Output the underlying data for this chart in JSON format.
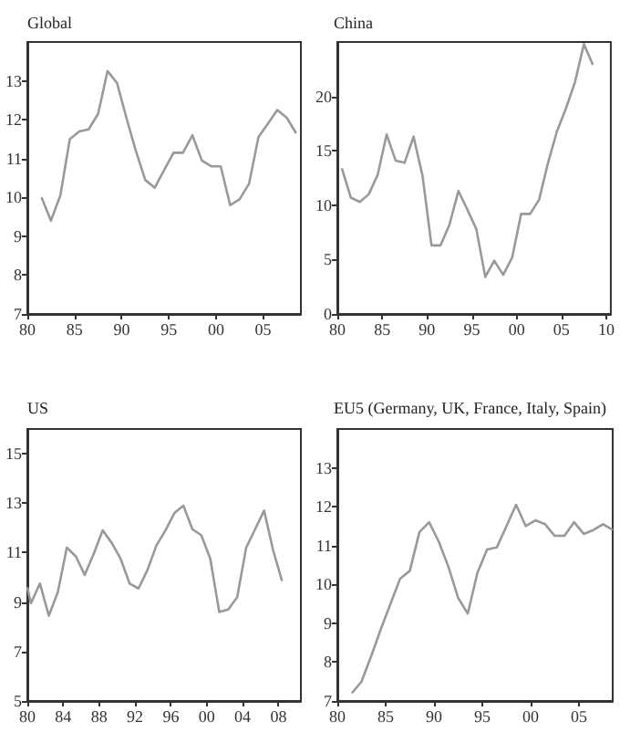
{
  "chart_data": [
    {
      "type": "line",
      "title": "Global",
      "x": [
        1981.5,
        1982.5,
        1983.5,
        1984.5,
        1985.5,
        1986.5,
        1987.5,
        1988.5,
        1989.5,
        1990.5,
        1991.5,
        1992.5,
        1993.5,
        1994.5,
        1995.5,
        1996.5,
        1997.5,
        1998.5,
        1999.5,
        2000.5,
        2001.5,
        2002.5,
        2003.5,
        2004.5,
        2005.5,
        2006.5,
        2007.5,
        2008.5
      ],
      "series": [
        {
          "color": "#999999",
          "values": [
            10.0,
            9.4,
            10.05,
            11.5,
            11.7,
            11.75,
            12.15,
            13.25,
            12.95,
            12.05,
            11.2,
            10.45,
            10.25,
            10.7,
            11.15,
            11.15,
            11.6,
            10.95,
            10.8,
            10.8,
            9.8,
            9.95,
            10.35,
            11.55,
            11.9,
            12.25,
            12.05,
            11.65
          ]
        }
      ],
      "xlim": [
        1980,
        2009
      ],
      "xticks": [
        {
          "value": 1980,
          "label": "80"
        },
        {
          "value": 1985,
          "label": "85"
        },
        {
          "value": 1990,
          "label": "90"
        },
        {
          "value": 1995,
          "label": "95"
        },
        {
          "value": 2000,
          "label": "00"
        },
        {
          "value": 2005,
          "label": "05"
        }
      ],
      "ylim": [
        7,
        14
      ],
      "yticks": [
        7,
        8,
        9,
        10,
        11,
        12,
        13
      ],
      "marker": "none",
      "line_style": "solid"
    },
    {
      "type": "line",
      "title": "China",
      "x": [
        1980.5,
        1981.5,
        1982.5,
        1983.5,
        1984.5,
        1985.5,
        1986.5,
        1987.5,
        1988.5,
        1989.5,
        1990.5,
        1991.5,
        1992.5,
        1993.5,
        1994.5,
        1995.5,
        1996.5,
        1997.5,
        1998.5,
        1999.5,
        2000.5,
        2001.5,
        2002.5,
        2003.5,
        2004.5,
        2005.5,
        2006.5,
        2007.5,
        2008.5
      ],
      "series": [
        {
          "color": "#999999",
          "values": [
            13.4,
            10.7,
            10.3,
            11.0,
            12.8,
            16.5,
            14.1,
            13.9,
            16.3,
            12.7,
            6.3,
            6.3,
            8.2,
            11.3,
            9.6,
            7.8,
            3.4,
            4.9,
            3.6,
            5.2,
            9.2,
            9.2,
            10.5,
            13.9,
            16.8,
            18.9,
            21.3,
            24.8,
            22.9
          ]
        }
      ],
      "xlim": [
        1980,
        2010.5
      ],
      "xticks": [
        {
          "value": 1980,
          "label": "80"
        },
        {
          "value": 1985,
          "label": "85"
        },
        {
          "value": 1990,
          "label": "90"
        },
        {
          "value": 1995,
          "label": "95"
        },
        {
          "value": 2000,
          "label": "00"
        },
        {
          "value": 2005,
          "label": "05"
        },
        {
          "value": 2010,
          "label": "10"
        }
      ],
      "ylim": [
        0,
        25
      ],
      "yticks": [
        0,
        5,
        10,
        15,
        20
      ],
      "marker": "none",
      "line_style": "solid"
    },
    {
      "type": "line",
      "title": "US",
      "x": [
        1980,
        1980.4,
        1981.4,
        1982.4,
        1983.4,
        1984.4,
        1985.4,
        1986.4,
        1987.4,
        1988.4,
        1989.4,
        1990.4,
        1991.4,
        1992.4,
        1993.4,
        1994.4,
        1995.4,
        1996.4,
        1997.4,
        1998.4,
        1999.4,
        2000.4,
        2001.4,
        2002.4,
        2003.4,
        2004.4,
        2005.4,
        2006.4,
        2007.4,
        2008.4
      ],
      "series": [
        {
          "color": "#999999",
          "values": [
            9.6,
            8.95,
            9.75,
            8.45,
            9.4,
            11.2,
            10.85,
            10.1,
            10.95,
            11.9,
            11.4,
            10.75,
            9.75,
            9.55,
            10.3,
            11.3,
            11.9,
            12.6,
            12.9,
            11.95,
            11.7,
            10.75,
            8.6,
            8.7,
            9.2,
            11.2,
            11.95,
            12.7,
            11.1,
            9.85
          ]
        }
      ],
      "xlim": [
        1980,
        2010.5
      ],
      "xticks": [
        {
          "value": 1980,
          "label": "80"
        },
        {
          "value": 1984,
          "label": "84"
        },
        {
          "value": 1988,
          "label": "88"
        },
        {
          "value": 1992,
          "label": "92"
        },
        {
          "value": 1996,
          "label": "96"
        },
        {
          "value": 2000,
          "label": "00"
        },
        {
          "value": 2004,
          "label": "04"
        },
        {
          "value": 2008,
          "label": "08"
        }
      ],
      "ylim": [
        5,
        16
      ],
      "yticks": [
        5,
        7,
        9,
        11,
        13,
        15
      ],
      "marker": "none",
      "line_style": "solid"
    },
    {
      "type": "line",
      "title": "EU5 (Germany, UK, France, Italy, Spain)",
      "x": [
        1981.5,
        1982.5,
        1983.5,
        1984.5,
        1985.5,
        1986.5,
        1987.5,
        1988.5,
        1989.5,
        1990.5,
        1991.5,
        1992.5,
        1993.5,
        1994.5,
        1995.5,
        1996.5,
        1997.5,
        1998.5,
        1999.5,
        2000.5,
        2001.5,
        2002.5,
        2003.5,
        2004.5,
        2005.5,
        2006.5,
        2007.5,
        2008.5
      ],
      "series": [
        {
          "color": "#999999",
          "values": [
            7.2,
            7.5,
            8.15,
            8.85,
            9.5,
            10.15,
            10.35,
            11.35,
            11.6,
            11.1,
            10.45,
            9.65,
            9.25,
            10.3,
            10.9,
            10.95,
            11.5,
            12.05,
            11.5,
            11.65,
            11.55,
            11.25,
            11.25,
            11.6,
            11.3,
            11.4,
            11.55,
            11.4
          ]
        }
      ],
      "xlim": [
        1980,
        2008.5
      ],
      "xticks": [
        {
          "value": 1980,
          "label": "80"
        },
        {
          "value": 1985,
          "label": "85"
        },
        {
          "value": 1990,
          "label": "90"
        },
        {
          "value": 1995,
          "label": "95"
        },
        {
          "value": 2000,
          "label": "00"
        },
        {
          "value": 2005,
          "label": "05"
        }
      ],
      "ylim": [
        7,
        14
      ],
      "yticks": [
        7,
        8,
        9,
        10,
        11,
        12,
        13
      ],
      "marker": "none",
      "line_style": "solid"
    }
  ]
}
